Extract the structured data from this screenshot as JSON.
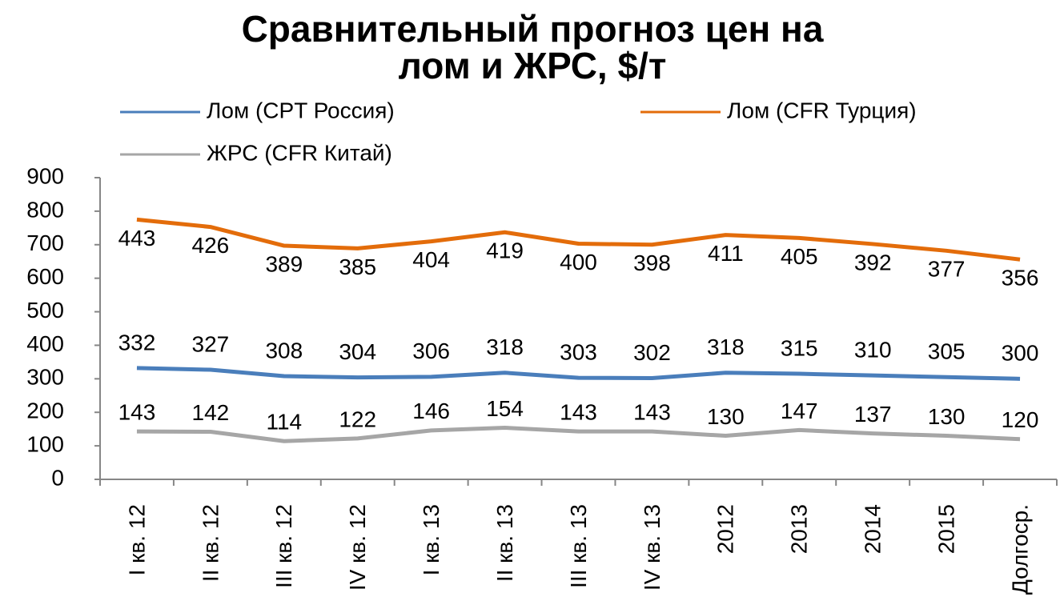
{
  "chart_data": {
    "type": "line",
    "title": [
      "Сравнительный прогноз цен на",
      "лом и ЖРС, $/т"
    ],
    "categories": [
      "I кв. 12",
      "II кв. 12",
      "III кв. 12",
      "IV кв. 12",
      "I кв. 13",
      "II кв. 13",
      "III кв. 13",
      "IV кв. 13",
      "2012",
      "2013",
      "2014",
      "2015",
      "Долгоср."
    ],
    "series": [
      {
        "name": "Лом (CPT Россия)",
        "color": "#4a7ebb",
        "stacked": true,
        "values": [
          332,
          327,
          308,
          304,
          306,
          318,
          303,
          302,
          318,
          315,
          310,
          305,
          300
        ]
      },
      {
        "name": "Лом (CFR Турция)",
        "color": "#e36c0a",
        "stacked": true,
        "values": [
          443,
          426,
          389,
          385,
          404,
          419,
          400,
          398,
          411,
          405,
          392,
          377,
          356
        ]
      },
      {
        "name": "ЖРС (CFR Китай)",
        "color": "#a6a6a6",
        "stacked": false,
        "values": [
          143,
          142,
          114,
          122,
          146,
          154,
          143,
          143,
          130,
          147,
          137,
          130,
          120
        ]
      }
    ],
    "ylim": [
      0,
      900
    ],
    "yticks": [
      0,
      100,
      200,
      300,
      400,
      500,
      600,
      700,
      800,
      900
    ],
    "grid": false
  }
}
